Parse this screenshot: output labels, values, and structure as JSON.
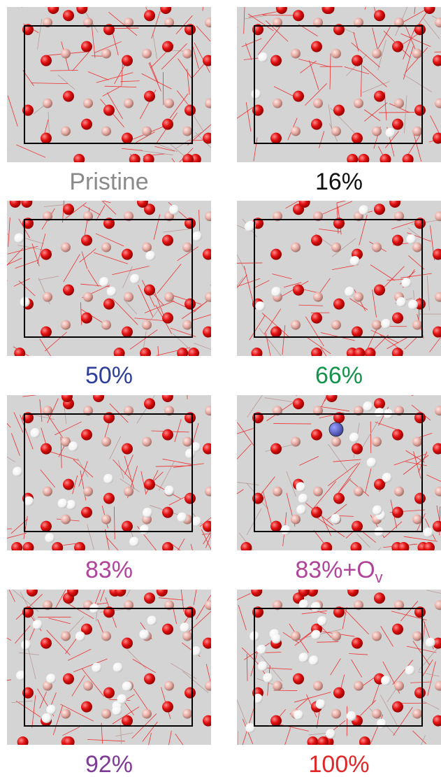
{
  "panels": [
    {
      "label": "Pristine",
      "color": "#8a8a8a"
    },
    {
      "label": "16%",
      "color": "#111111"
    },
    {
      "label": "50%",
      "color": "#2e3f9a"
    },
    {
      "label": "66%",
      "color": "#13944a"
    },
    {
      "label": "83%",
      "color": "#b0449a"
    },
    {
      "label": "83%+O",
      "subscript": "v",
      "color": "#b0449a"
    },
    {
      "label": "92%",
      "color": "#7d3a96"
    },
    {
      "label": "100%",
      "color": "#e0282a"
    }
  ]
}
